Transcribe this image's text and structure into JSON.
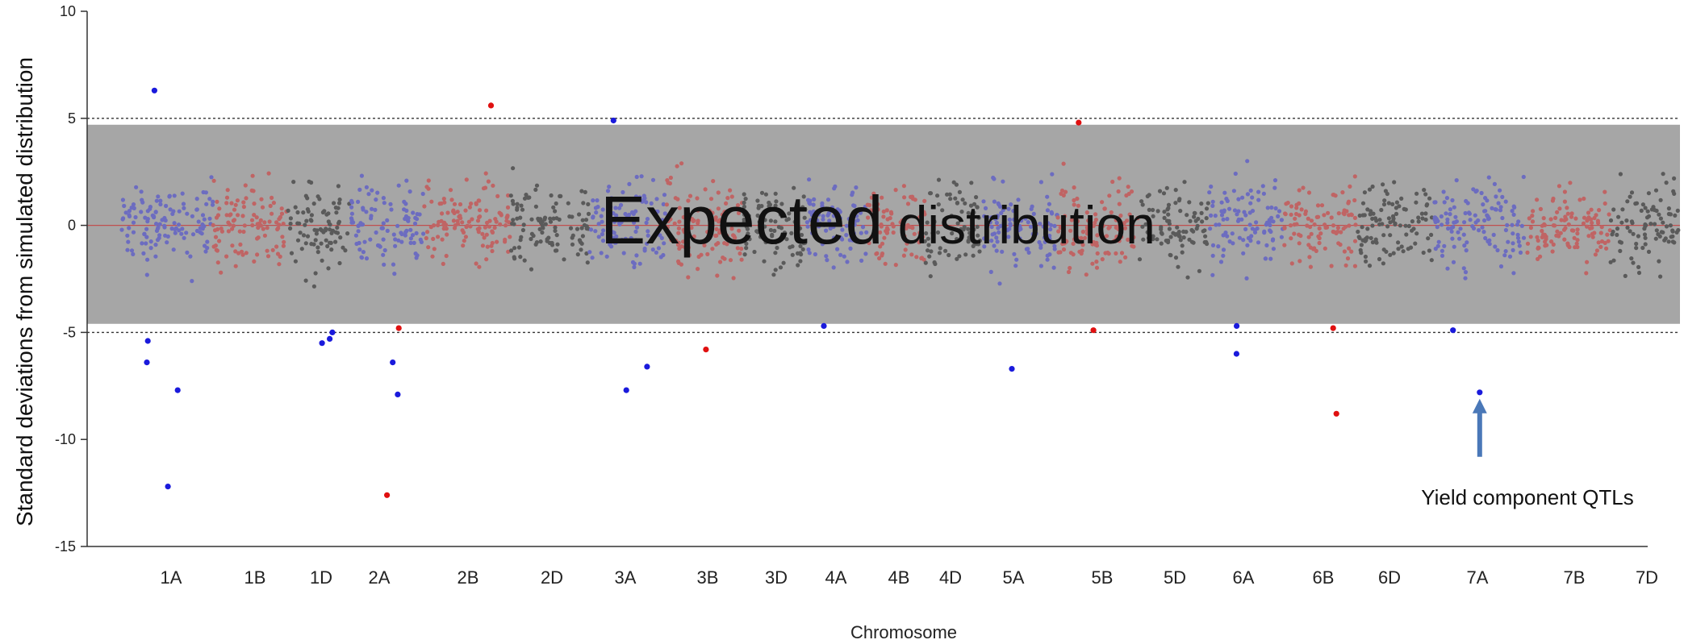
{
  "chart_data": {
    "type": "scatter",
    "ylabel": "Standard deviations from simulated distribution",
    "xlabel": "Chromosome",
    "ylim": [
      -15,
      10
    ],
    "yticks": [
      10,
      5,
      0,
      -5,
      -10,
      -15
    ],
    "threshold_lines": [
      5,
      -5
    ],
    "band": {
      "label_main": "Expected",
      "label_rest": " distribution",
      "range": [
        -4.6,
        4.7
      ],
      "color": "#a6a6a6"
    },
    "chromosomes": [
      "1A",
      "1B",
      "1D",
      "2A",
      "2B",
      "2D",
      "3A",
      "3B",
      "3D",
      "4A",
      "4B",
      "4D",
      "5A",
      "5B",
      "5D",
      "6A",
      "6B",
      "6D",
      "7A",
      "7B",
      "7D"
    ],
    "palette": {
      "A": "#6c6cc0",
      "B": "#c06464",
      "D": "#5a5a5a",
      "outlier_A": "#1a1adc",
      "outlier_B": "#e01010"
    },
    "outliers": [
      {
        "chromosome": "1A",
        "y": 6.3,
        "genome": "A"
      },
      {
        "chromosome": "1A",
        "y": -5.4,
        "genome": "A"
      },
      {
        "chromosome": "1A",
        "y": -6.4,
        "genome": "A"
      },
      {
        "chromosome": "1A",
        "y": -7.7,
        "genome": "A"
      },
      {
        "chromosome": "1A",
        "y": -12.2,
        "genome": "A"
      },
      {
        "chromosome": "1D",
        "y": -5.3,
        "genome": "A"
      },
      {
        "chromosome": "1D",
        "y": -5.5,
        "genome": "A"
      },
      {
        "chromosome": "1D",
        "y": -5.0,
        "genome": "A"
      },
      {
        "chromosome": "2A",
        "y": -6.4,
        "genome": "A"
      },
      {
        "chromosome": "2A",
        "y": -7.9,
        "genome": "A"
      },
      {
        "chromosome": "2A",
        "y": -12.6,
        "genome": "B"
      },
      {
        "chromosome": "2A",
        "y": -4.8,
        "genome": "B"
      },
      {
        "chromosome": "2B",
        "y": 5.6,
        "genome": "B"
      },
      {
        "chromosome": "3A",
        "y": 4.9,
        "genome": "A"
      },
      {
        "chromosome": "3A",
        "y": -6.6,
        "genome": "A"
      },
      {
        "chromosome": "3A",
        "y": -7.7,
        "genome": "A"
      },
      {
        "chromosome": "3B",
        "y": -5.8,
        "genome": "B"
      },
      {
        "chromosome": "4A",
        "y": -4.7,
        "genome": "A"
      },
      {
        "chromosome": "5A",
        "y": -6.7,
        "genome": "A"
      },
      {
        "chromosome": "5B",
        "y": -4.9,
        "genome": "B"
      },
      {
        "chromosome": "5B",
        "y": 4.8,
        "genome": "B"
      },
      {
        "chromosome": "6A",
        "y": -6.0,
        "genome": "A"
      },
      {
        "chromosome": "6A",
        "y": -4.7,
        "genome": "A"
      },
      {
        "chromosome": "6B",
        "y": -8.8,
        "genome": "B"
      },
      {
        "chromosome": "6B",
        "y": -4.8,
        "genome": "B"
      },
      {
        "chromosome": "7A",
        "y": -4.9,
        "genome": "A"
      },
      {
        "chromosome": "7A",
        "y": -7.8,
        "genome": "A"
      }
    ],
    "annotation": {
      "text": "Yield component QTLs",
      "points_to": {
        "chromosome": "7A",
        "y": -7.8
      }
    }
  }
}
